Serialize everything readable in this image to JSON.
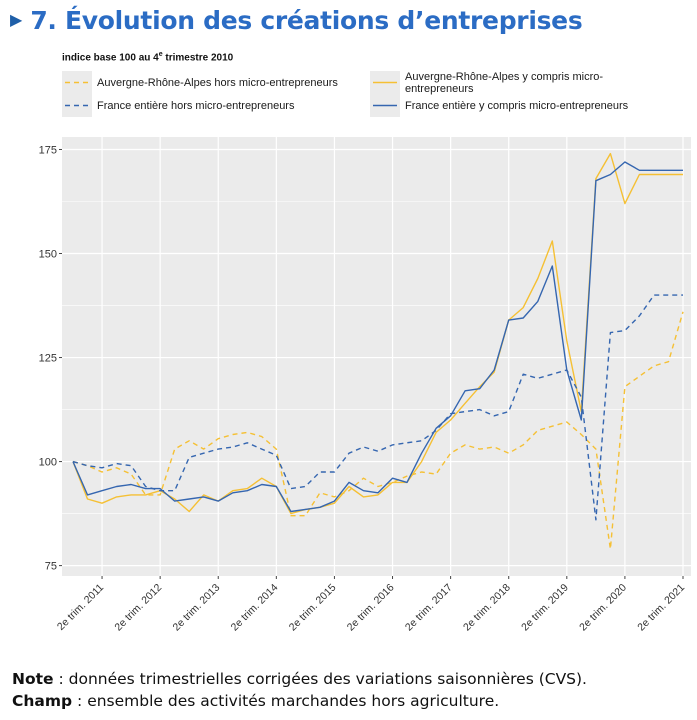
{
  "header": {
    "marker": "▶",
    "title": "7. Évolution des créations d’entreprises",
    "subtitle": "indice base 100 au 4e trimestre 2010"
  },
  "colors": {
    "aura": "#f5c034",
    "france": "#3566b0",
    "panel": "#ebebeb",
    "grid": "#ffffff",
    "title": "#2b6cc4"
  },
  "legend": {
    "aura_hors": "Auvergne-Rhône-Alpes hors micro-entrepreneurs",
    "aura_y": "Auvergne-Rhône-Alpes y compris micro-entrepreneurs",
    "france_hors": "France entière hors micro-entrepreneurs",
    "france_y": "France entière y compris micro-entrepreneurs"
  },
  "footer": {
    "note_label": "Note",
    "note_text": " : données trimestrielles corrigées des variations saisonnières (CVS).",
    "champ_label": "Champ",
    "champ_text": " : ensemble des activités marchandes hors agriculture."
  },
  "chart_data": {
    "type": "line",
    "title": "7. Évolution des créations d’entreprises",
    "subtitle": "indice base 100 au 4e trimestre 2010",
    "ylim": [
      75,
      178
    ],
    "yticks": [
      75,
      100,
      125,
      150,
      175
    ],
    "x": [
      "2010 T4",
      "2011 T1",
      "2011 T2",
      "2011 T3",
      "2011 T4",
      "2012 T1",
      "2012 T2",
      "2012 T3",
      "2012 T4",
      "2013 T1",
      "2013 T2",
      "2013 T3",
      "2013 T4",
      "2014 T1",
      "2014 T2",
      "2014 T3",
      "2014 T4",
      "2015 T1",
      "2015 T2",
      "2015 T3",
      "2015 T4",
      "2016 T1",
      "2016 T2",
      "2016 T3",
      "2016 T4",
      "2017 T1",
      "2017 T2",
      "2017 T3",
      "2017 T4",
      "2018 T1",
      "2018 T2",
      "2018 T3",
      "2018 T4",
      "2019 T1",
      "2019 T2",
      "2019 T3",
      "2019 T4",
      "2020 T1",
      "2020 T2",
      "2020 T3",
      "2020 T4",
      "2021 T1",
      "2021 T2"
    ],
    "xtick_labels": [
      "2e trim. 2011",
      "2e trim. 2012",
      "2e trim. 2013",
      "2e trim. 2014",
      "2e trim. 2015",
      "2e trim. 2016",
      "2e trim. 2017",
      "2e trim. 2018",
      "2e trim. 2019",
      "2e trim. 2020",
      "2e trim. 2021"
    ],
    "xtick_indices": [
      2,
      6,
      10,
      14,
      18,
      22,
      26,
      30,
      34,
      38,
      42
    ],
    "series": [
      {
        "name": "Auvergne-Rhône-Alpes hors micro-entrepreneurs",
        "color": "#f5c034",
        "dashed": true,
        "values": [
          100,
          99,
          97.5,
          98.5,
          97,
          92,
          92,
          103,
          105,
          103,
          105.5,
          106.5,
          107,
          106,
          103,
          87,
          87,
          92.5,
          91.5,
          93,
          96,
          94,
          95,
          96.5,
          97.5,
          97,
          102,
          104,
          103,
          103.5,
          102,
          104,
          107.5,
          108.5,
          109.5,
          106.5,
          103,
          79,
          118,
          120.5,
          123,
          124,
          136
        ]
      },
      {
        "name": "Auvergne-Rhône-Alpes y compris micro-entrepreneurs",
        "color": "#f5c034",
        "dashed": false,
        "values": [
          100,
          91,
          90,
          91.5,
          92,
          92,
          93,
          91,
          88,
          92,
          90.5,
          93,
          93.5,
          96,
          94,
          87.5,
          88.5,
          89,
          90,
          94,
          91.5,
          92,
          95,
          95,
          100,
          107,
          110,
          114,
          118,
          121.5,
          134,
          137,
          144,
          153,
          129,
          112,
          168,
          174,
          162,
          169,
          169,
          169,
          169
        ]
      },
      {
        "name": "France entière hors micro-entrepreneurs",
        "color": "#3566b0",
        "dashed": true,
        "values": [
          100,
          99,
          98.5,
          99.5,
          99,
          94,
          93,
          93,
          101,
          102,
          103,
          103.5,
          104.5,
          103,
          101.5,
          93.5,
          94,
          97.5,
          97.5,
          102,
          103.5,
          102.5,
          104,
          104.5,
          105,
          107.5,
          111.5,
          112,
          112.5,
          111,
          112,
          121,
          120,
          121,
          122,
          115.5,
          86,
          131,
          131.5,
          135,
          140,
          140,
          140
        ]
      },
      {
        "name": "France entière y compris micro-entrepreneurs",
        "color": "#3566b0",
        "dashed": false,
        "values": [
          100,
          92,
          93,
          94,
          94.5,
          93.5,
          93.5,
          90.5,
          91,
          91.5,
          90.5,
          92.5,
          93,
          94.5,
          94,
          88,
          88.5,
          89,
          90.5,
          95,
          93,
          92.5,
          96,
          95,
          102,
          108,
          111,
          117,
          117.5,
          122,
          134,
          134.5,
          138.5,
          147,
          122,
          110,
          167.5,
          169,
          172,
          170,
          170,
          170,
          170
        ]
      }
    ]
  }
}
